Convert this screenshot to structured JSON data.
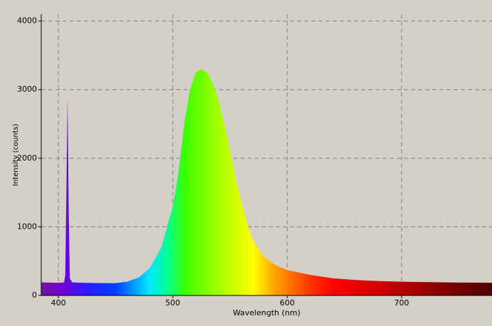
{
  "chart_data": {
    "type": "area",
    "xlabel": "Wavelength (nm)",
    "ylabel": "Intensity (counts)",
    "x": [
      385,
      400,
      405,
      406,
      407,
      408,
      409,
      410,
      412,
      420,
      440,
      450,
      460,
      470,
      480,
      490,
      500,
      505,
      510,
      515,
      520,
      525,
      530,
      535,
      540,
      545,
      550,
      555,
      560,
      565,
      570,
      580,
      590,
      600,
      620,
      640,
      660,
      680,
      700,
      740,
      779
    ],
    "values": [
      190,
      185,
      190,
      300,
      1500,
      2900,
      1200,
      250,
      190,
      185,
      180,
      180,
      200,
      260,
      400,
      700,
      1300,
      1800,
      2500,
      3000,
      3250,
      3300,
      3250,
      3100,
      2850,
      2500,
      2100,
      1700,
      1350,
      1050,
      800,
      560,
      440,
      370,
      300,
      250,
      225,
      210,
      200,
      190,
      185
    ],
    "xlim": [
      385,
      779
    ],
    "ylim": [
      0,
      4100
    ],
    "xticks": [
      400,
      500,
      600,
      700
    ],
    "yticks": [
      0,
      1000,
      2000,
      3000,
      4000
    ],
    "grid": true
  }
}
